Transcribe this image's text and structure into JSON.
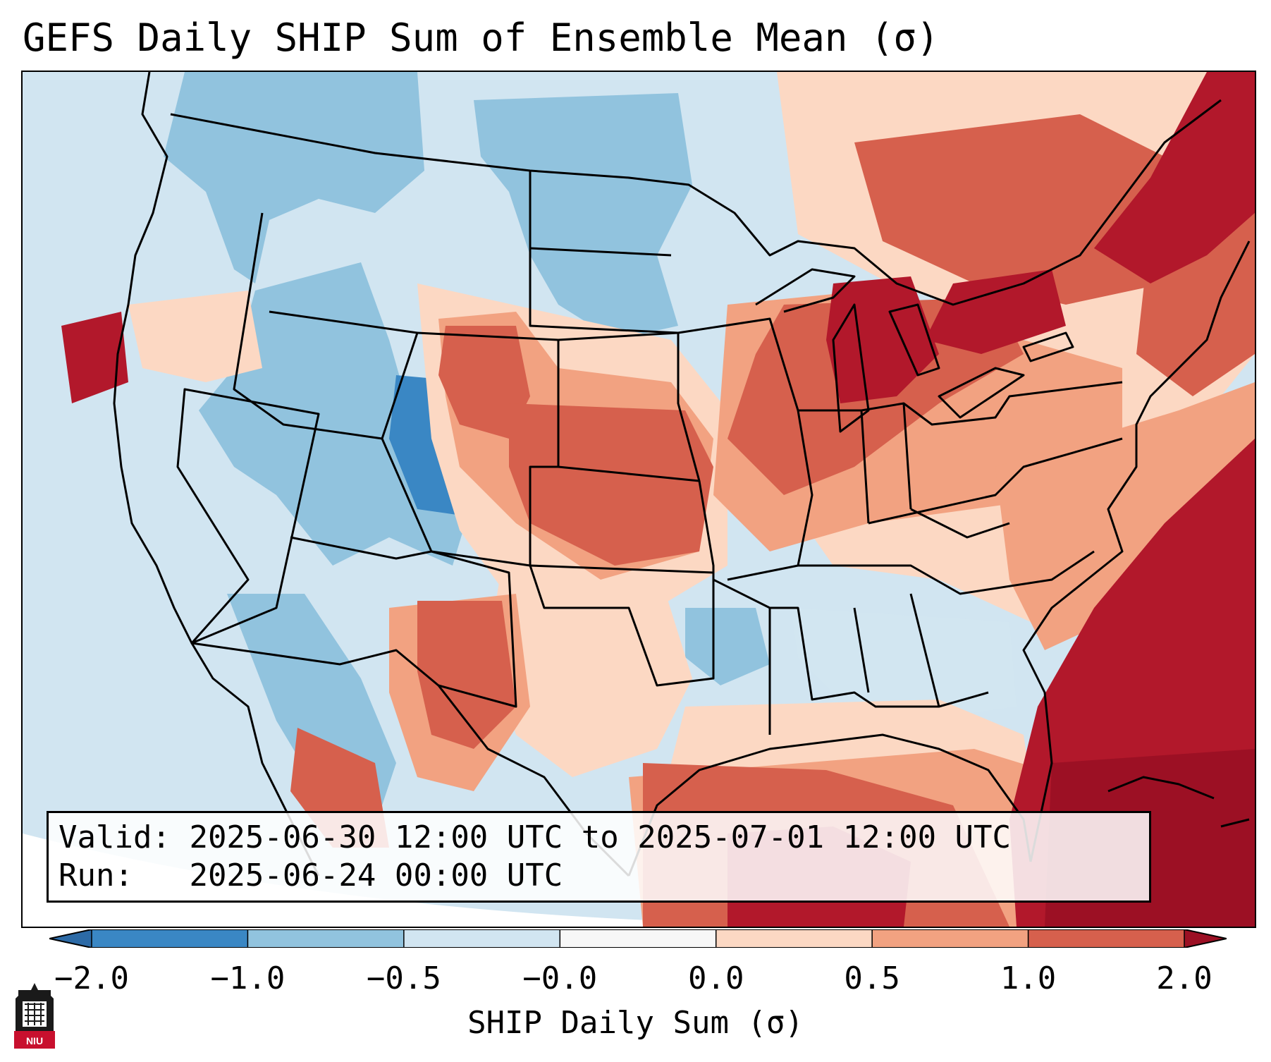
{
  "title": "GEFS Daily SHIP Sum of Ensemble Mean (σ)",
  "info": {
    "valid_label": "Valid:",
    "valid_value": "2025-06-30 12:00 UTC to 2025-07-01 12:00 UTC",
    "run_label": "Run:",
    "run_value": "2025-06-24 00:00 UTC"
  },
  "colorbar": {
    "label": "SHIP Daily Sum (σ)",
    "ticks": [
      "−2.0",
      "−1.0",
      "−0.5",
      "−0.0",
      "0.0",
      "0.5",
      "1.0",
      "2.0"
    ],
    "colors": [
      "#3a87c4",
      "#91c3de",
      "#d1e5f1",
      "#f7f7f7",
      "#fcd8c3",
      "#f2a281",
      "#d6604d",
      "#b2182b"
    ],
    "under_color": "#2c6aa6",
    "over_color": "#9c1024"
  },
  "map": {
    "background": "#d1e5f1",
    "border_color": "#000000"
  },
  "logo": {
    "text": "NIU",
    "color": "#c8102e"
  }
}
